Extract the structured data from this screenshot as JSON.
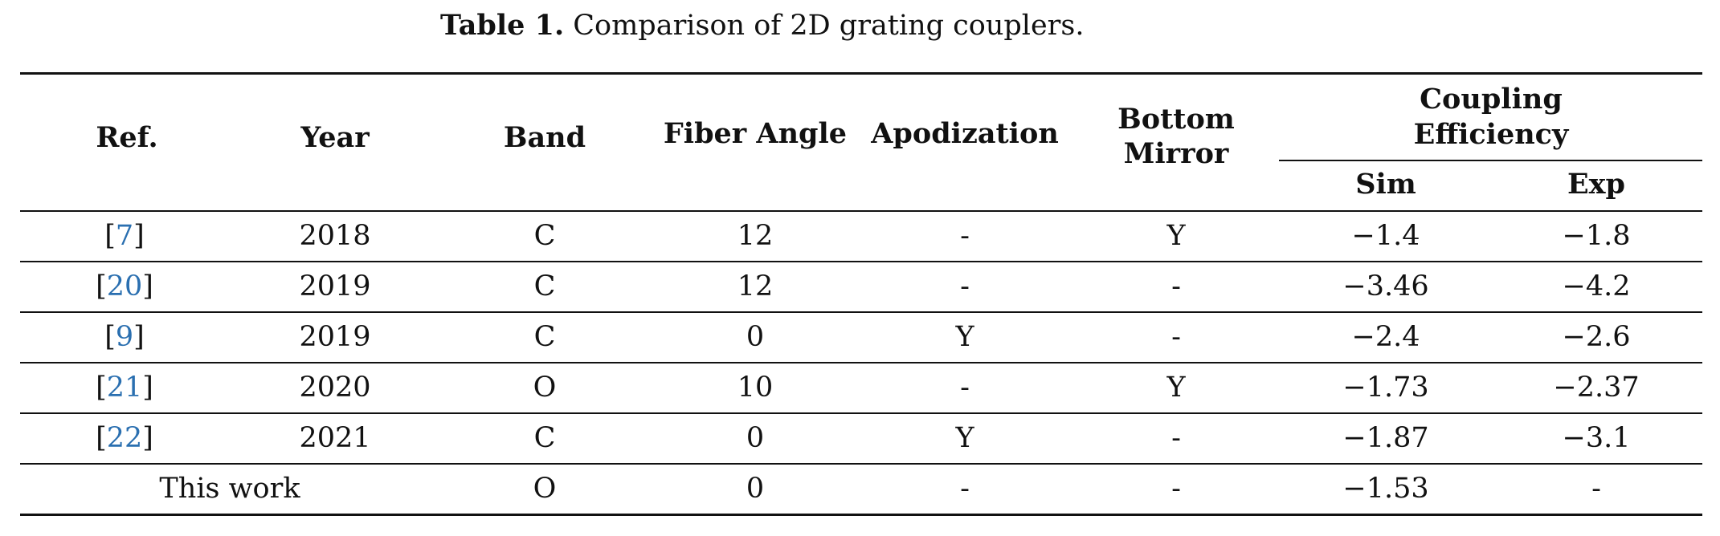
{
  "caption": {
    "label": "Table 1.",
    "text": " Comparison of 2D grating couplers."
  },
  "table": {
    "headers": {
      "ref": "Ref.",
      "year": "Year",
      "band": "Band",
      "fiber_angle": "Fiber Angle",
      "apodization": "Apodization",
      "bottom_mirror_line1": "Bottom",
      "bottom_mirror_line2": "Mirror",
      "coupling_efficiency_line1": "Coupling",
      "coupling_efficiency_line2": "Efficiency",
      "sim": "Sim",
      "exp": "Exp"
    },
    "rows": [
      {
        "ref_open": "[",
        "ref_num": "7",
        "ref_close": "]",
        "year": "2018",
        "band": "C",
        "fiber_angle": "12",
        "apodization": "-",
        "bottom_mirror": "Y",
        "sim": "−1.4",
        "exp": "−1.8"
      },
      {
        "ref_open": "[",
        "ref_num": "20",
        "ref_close": "]",
        "year": "2019",
        "band": "C",
        "fiber_angle": "12",
        "apodization": "-",
        "bottom_mirror": "-",
        "sim": "−3.46",
        "exp": "−4.2"
      },
      {
        "ref_open": "[",
        "ref_num": "9",
        "ref_close": "]",
        "year": "2019",
        "band": "C",
        "fiber_angle": "0",
        "apodization": "Y",
        "bottom_mirror": "-",
        "sim": "−2.4",
        "exp": "−2.6"
      },
      {
        "ref_open": "[",
        "ref_num": "21",
        "ref_close": "]",
        "year": "2020",
        "band": "O",
        "fiber_angle": "10",
        "apodization": "-",
        "bottom_mirror": "Y",
        "sim": "−1.73",
        "exp": "−2.37"
      },
      {
        "ref_open": "[",
        "ref_num": "22",
        "ref_close": "]",
        "year": "2021",
        "band": "C",
        "fiber_angle": "0",
        "apodization": "Y",
        "bottom_mirror": "-",
        "sim": "−1.87",
        "exp": "−3.1"
      },
      {
        "label": "This work",
        "year": "",
        "band": "O",
        "fiber_angle": "0",
        "apodization": "-",
        "bottom_mirror": "-",
        "sim": "−1.53",
        "exp": "-"
      }
    ]
  },
  "colors": {
    "text": "#111111",
    "link": "#2a6fb0",
    "rule": "#111111"
  }
}
